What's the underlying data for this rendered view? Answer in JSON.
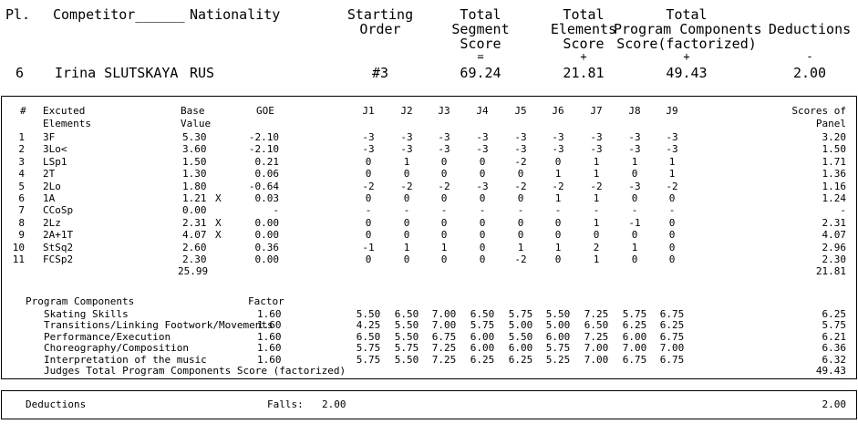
{
  "header": {
    "cols": {
      "pl": "Pl.",
      "competitor": "Competitor______",
      "nationality": "Nationality",
      "starting_order": [
        "Starting",
        "Order"
      ],
      "tss": [
        "Total",
        "Segment",
        "Score",
        "="
      ],
      "tes": [
        "Total",
        "Elements",
        "Score",
        "+"
      ],
      "pcs": [
        "Total",
        "Program Components",
        "Score(factorized)",
        "+"
      ],
      "deductions": [
        "Deductions",
        "-"
      ]
    },
    "values": {
      "pl": "6",
      "competitor": "Irina SLUTSKAYA",
      "nationality": "RUS",
      "starting_order": "#3",
      "tss": "69.24",
      "tes": "21.81",
      "pcs": "49.43",
      "deductions": "2.00"
    }
  },
  "elements_table": {
    "headers": {
      "num": "#",
      "elements": [
        "Excuted",
        "Elements"
      ],
      "base": [
        "Base",
        "Value"
      ],
      "goe": "GOE",
      "judges": [
        "J1",
        "J2",
        "J3",
        "J4",
        "J5",
        "J6",
        "J7",
        "J8",
        "J9"
      ],
      "panel": [
        "Scores of",
        "Panel"
      ]
    },
    "rows": [
      {
        "n": "1",
        "el": "3F",
        "base": "5.30",
        "x": "",
        "goe": "-2.10",
        "j": [
          "-3",
          "-3",
          "-3",
          "-3",
          "-3",
          "-3",
          "-3",
          "-3",
          "-3"
        ],
        "panel": "3.20"
      },
      {
        "n": "2",
        "el": "3Lo<",
        "base": "3.60",
        "x": "",
        "goe": "-2.10",
        "j": [
          "-3",
          "-3",
          "-3",
          "-3",
          "-3",
          "-3",
          "-3",
          "-3",
          "-3"
        ],
        "panel": "1.50"
      },
      {
        "n": "3",
        "el": "LSp1",
        "base": "1.50",
        "x": "",
        "goe": "0.21",
        "j": [
          "0",
          "1",
          "0",
          "0",
          "-2",
          "0",
          "1",
          "1",
          "1"
        ],
        "panel": "1.71"
      },
      {
        "n": "4",
        "el": "2T",
        "base": "1.30",
        "x": "",
        "goe": "0.06",
        "j": [
          "0",
          "0",
          "0",
          "0",
          "0",
          "1",
          "1",
          "0",
          "1"
        ],
        "panel": "1.36"
      },
      {
        "n": "5",
        "el": "2Lo",
        "base": "1.80",
        "x": "",
        "goe": "-0.64",
        "j": [
          "-2",
          "-2",
          "-2",
          "-3",
          "-2",
          "-2",
          "-2",
          "-3",
          "-2"
        ],
        "panel": "1.16"
      },
      {
        "n": "6",
        "el": "1A",
        "base": "1.21",
        "x": "X",
        "goe": "0.03",
        "j": [
          "0",
          "0",
          "0",
          "0",
          "0",
          "1",
          "1",
          "0",
          "0"
        ],
        "panel": "1.24"
      },
      {
        "n": "7",
        "el": "CCoSp",
        "base": "0.00",
        "x": "",
        "goe": "-",
        "j": [
          "-",
          "-",
          "-",
          "-",
          "-",
          "-",
          "-",
          "-",
          "-"
        ],
        "panel": "-"
      },
      {
        "n": "8",
        "el": "2Lz",
        "base": "2.31",
        "x": "X",
        "goe": "0.00",
        "j": [
          "0",
          "0",
          "0",
          "0",
          "0",
          "0",
          "1",
          "-1",
          "0"
        ],
        "panel": "2.31"
      },
      {
        "n": "9",
        "el": "2A+1T",
        "base": "4.07",
        "x": "X",
        "goe": "0.00",
        "j": [
          "0",
          "0",
          "0",
          "0",
          "0",
          "0",
          "0",
          "0",
          "0"
        ],
        "panel": "4.07"
      },
      {
        "n": "10",
        "el": "StSq2",
        "base": "2.60",
        "x": "",
        "goe": "0.36",
        "j": [
          "-1",
          "1",
          "1",
          "0",
          "1",
          "1",
          "2",
          "1",
          "0"
        ],
        "panel": "2.96"
      },
      {
        "n": "11",
        "el": "FCSp2",
        "base": "2.30",
        "x": "",
        "goe": "0.00",
        "j": [
          "0",
          "0",
          "0",
          "0",
          "-2",
          "0",
          "1",
          "0",
          "0"
        ],
        "panel": "2.30"
      }
    ],
    "base_total": "25.99",
    "panel_total": "21.81"
  },
  "program_components": {
    "title": "Program Components",
    "factor_label": "Factor",
    "rows": [
      {
        "name": "Skating Skills",
        "factor": "1.60",
        "j": [
          "5.50",
          "6.50",
          "7.00",
          "6.50",
          "5.75",
          "5.50",
          "7.25",
          "5.75",
          "6.75"
        ],
        "score": "6.25"
      },
      {
        "name": "Transitions/Linking Footwork/Movements",
        "factor": "1.60",
        "j": [
          "4.25",
          "5.50",
          "7.00",
          "5.75",
          "5.00",
          "5.00",
          "6.50",
          "6.25",
          "6.25"
        ],
        "score": "5.75"
      },
      {
        "name": "Performance/Execution",
        "factor": "1.60",
        "j": [
          "6.50",
          "5.50",
          "6.75",
          "6.00",
          "5.50",
          "6.00",
          "7.25",
          "6.00",
          "6.75"
        ],
        "score": "6.21"
      },
      {
        "name": "Choreography/Composition",
        "factor": "1.60",
        "j": [
          "5.75",
          "5.75",
          "7.25",
          "6.00",
          "6.00",
          "5.75",
          "7.00",
          "7.00",
          "7.00"
        ],
        "score": "6.36"
      },
      {
        "name": "Interpretation of the music",
        "factor": "1.60",
        "j": [
          "5.75",
          "5.50",
          "7.25",
          "6.25",
          "6.25",
          "5.25",
          "7.00",
          "6.75",
          "6.75"
        ],
        "score": "6.32"
      }
    ],
    "total_label": "Judges Total Program Components Score (factorized)",
    "total": "49.43"
  },
  "deductions_box": {
    "label": "Deductions",
    "falls_label": "Falls:",
    "falls_value": "2.00",
    "total": "2.00"
  }
}
